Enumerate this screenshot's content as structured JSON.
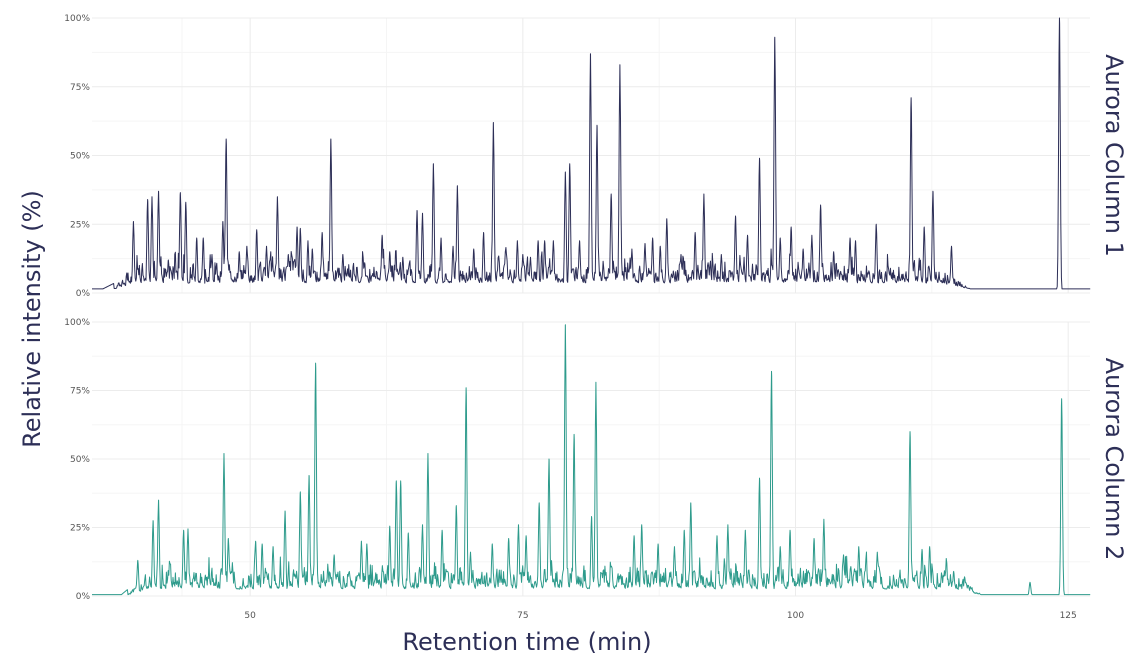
{
  "chart_data": {
    "type": "line",
    "xlabel": "Retention time (min)",
    "ylabel": "Relative intensity (%)",
    "xlim": [
      35.5,
      127
    ],
    "ylim": [
      0,
      100
    ],
    "x_ticks": [
      50,
      75,
      100,
      125
    ],
    "x_tick_labels": [
      "50",
      "75",
      "100",
      "125"
    ],
    "y_ticks": [
      0,
      25,
      50,
      75,
      100
    ],
    "y_tick_labels": [
      "0%",
      "25%",
      "50%",
      "75%",
      "100%"
    ],
    "grid": true,
    "panels": [
      {
        "name": "Aurora Column 1",
        "color": "#2d2f57",
        "baseline": 1.5,
        "start": 36.5,
        "noise_start": 37.5,
        "noise_end": 116,
        "peaks": [
          [
            39.3,
            26
          ],
          [
            40.6,
            34
          ],
          [
            41.0,
            35
          ],
          [
            41.6,
            37
          ],
          [
            42.5,
            12
          ],
          [
            43.6,
            36.5
          ],
          [
            44.1,
            33
          ],
          [
            45.1,
            20
          ],
          [
            45.7,
            20
          ],
          [
            46.5,
            14
          ],
          [
            47.5,
            26
          ],
          [
            47.8,
            56
          ],
          [
            49.0,
            15
          ],
          [
            49.7,
            17
          ],
          [
            50.6,
            23
          ],
          [
            51.5,
            17
          ],
          [
            52.5,
            35
          ],
          [
            53.5,
            14
          ],
          [
            54.3,
            24
          ],
          [
            54.6,
            23.5
          ],
          [
            55.3,
            19
          ],
          [
            55.7,
            16
          ],
          [
            56.6,
            22
          ],
          [
            57.4,
            56
          ],
          [
            58.5,
            14
          ],
          [
            60.5,
            11
          ],
          [
            62.1,
            21
          ],
          [
            62.8,
            15
          ],
          [
            64.0,
            13
          ],
          [
            65.3,
            30
          ],
          [
            65.8,
            29
          ],
          [
            66.8,
            47
          ],
          [
            67.5,
            20
          ],
          [
            68.6,
            17
          ],
          [
            69.0,
            39
          ],
          [
            70.5,
            16
          ],
          [
            71.4,
            22
          ],
          [
            72.3,
            62
          ],
          [
            73.5,
            14
          ],
          [
            74.5,
            19
          ],
          [
            75.0,
            14
          ],
          [
            75.7,
            13
          ],
          [
            76.4,
            19
          ],
          [
            77.0,
            19
          ],
          [
            77.8,
            19
          ],
          [
            78.9,
            44
          ],
          [
            79.3,
            47
          ],
          [
            80.2,
            19
          ],
          [
            81.2,
            87
          ],
          [
            81.8,
            61
          ],
          [
            83.1,
            36
          ],
          [
            83.9,
            83
          ],
          [
            85.0,
            16
          ],
          [
            86.2,
            18
          ],
          [
            86.9,
            20
          ],
          [
            87.6,
            17
          ],
          [
            88.2,
            27
          ],
          [
            89.5,
            14
          ],
          [
            90.8,
            22
          ],
          [
            91.6,
            36
          ],
          [
            93.2,
            14
          ],
          [
            94.5,
            28
          ],
          [
            95.6,
            21
          ],
          [
            96.7,
            49
          ],
          [
            98.1,
            93
          ],
          [
            98.6,
            20
          ],
          [
            99.6,
            24
          ],
          [
            100.7,
            16
          ],
          [
            101.5,
            21
          ],
          [
            102.3,
            32
          ],
          [
            103.5,
            15
          ],
          [
            105.0,
            20
          ],
          [
            105.5,
            19
          ],
          [
            107.4,
            25
          ],
          [
            110.6,
            71
          ],
          [
            111.8,
            24
          ],
          [
            112.6,
            37
          ],
          [
            114.3,
            17
          ],
          [
            124.2,
            100
          ]
        ]
      },
      {
        "name": "Aurora Column 2",
        "color": "#2e9b8c",
        "baseline": 0.5,
        "start": 38.2,
        "noise_start": 38.8,
        "noise_end": 117,
        "peaks": [
          [
            39.7,
            13
          ],
          [
            41.1,
            27.5
          ],
          [
            41.6,
            35
          ],
          [
            43.9,
            24
          ],
          [
            44.3,
            24.5
          ],
          [
            47.6,
            52
          ],
          [
            48.0,
            21
          ],
          [
            50.5,
            20
          ],
          [
            51.1,
            19
          ],
          [
            52.1,
            18
          ],
          [
            53.2,
            31
          ],
          [
            54.6,
            38
          ],
          [
            55.4,
            44
          ],
          [
            56.0,
            85
          ],
          [
            57.7,
            15
          ],
          [
            60.2,
            20
          ],
          [
            60.7,
            19
          ],
          [
            62.8,
            25.5
          ],
          [
            63.4,
            42
          ],
          [
            63.8,
            42
          ],
          [
            64.5,
            23
          ],
          [
            65.8,
            26
          ],
          [
            66.3,
            52
          ],
          [
            67.6,
            24
          ],
          [
            68.9,
            33
          ],
          [
            69.8,
            76
          ],
          [
            70.2,
            16
          ],
          [
            72.2,
            19
          ],
          [
            73.7,
            21
          ],
          [
            74.6,
            26
          ],
          [
            75.3,
            22
          ],
          [
            76.5,
            34
          ],
          [
            77.4,
            50
          ],
          [
            78.9,
            99
          ],
          [
            79.7,
            59
          ],
          [
            81.3,
            29
          ],
          [
            81.7,
            78
          ],
          [
            85.2,
            22
          ],
          [
            85.9,
            26
          ],
          [
            87.4,
            19
          ],
          [
            88.9,
            18
          ],
          [
            89.8,
            24
          ],
          [
            90.4,
            34
          ],
          [
            92.8,
            22
          ],
          [
            93.8,
            26
          ],
          [
            95.4,
            24
          ],
          [
            96.7,
            43
          ],
          [
            97.8,
            82
          ],
          [
            98.6,
            18
          ],
          [
            99.5,
            24
          ],
          [
            101.7,
            21
          ],
          [
            102.6,
            28
          ],
          [
            104.4,
            15
          ],
          [
            105.8,
            18
          ],
          [
            107.5,
            16
          ],
          [
            110.5,
            60
          ],
          [
            111.6,
            17
          ],
          [
            112.3,
            18
          ],
          [
            114.5,
            9
          ],
          [
            115.5,
            7
          ],
          [
            121.5,
            5
          ],
          [
            124.4,
            72
          ]
        ]
      }
    ]
  }
}
